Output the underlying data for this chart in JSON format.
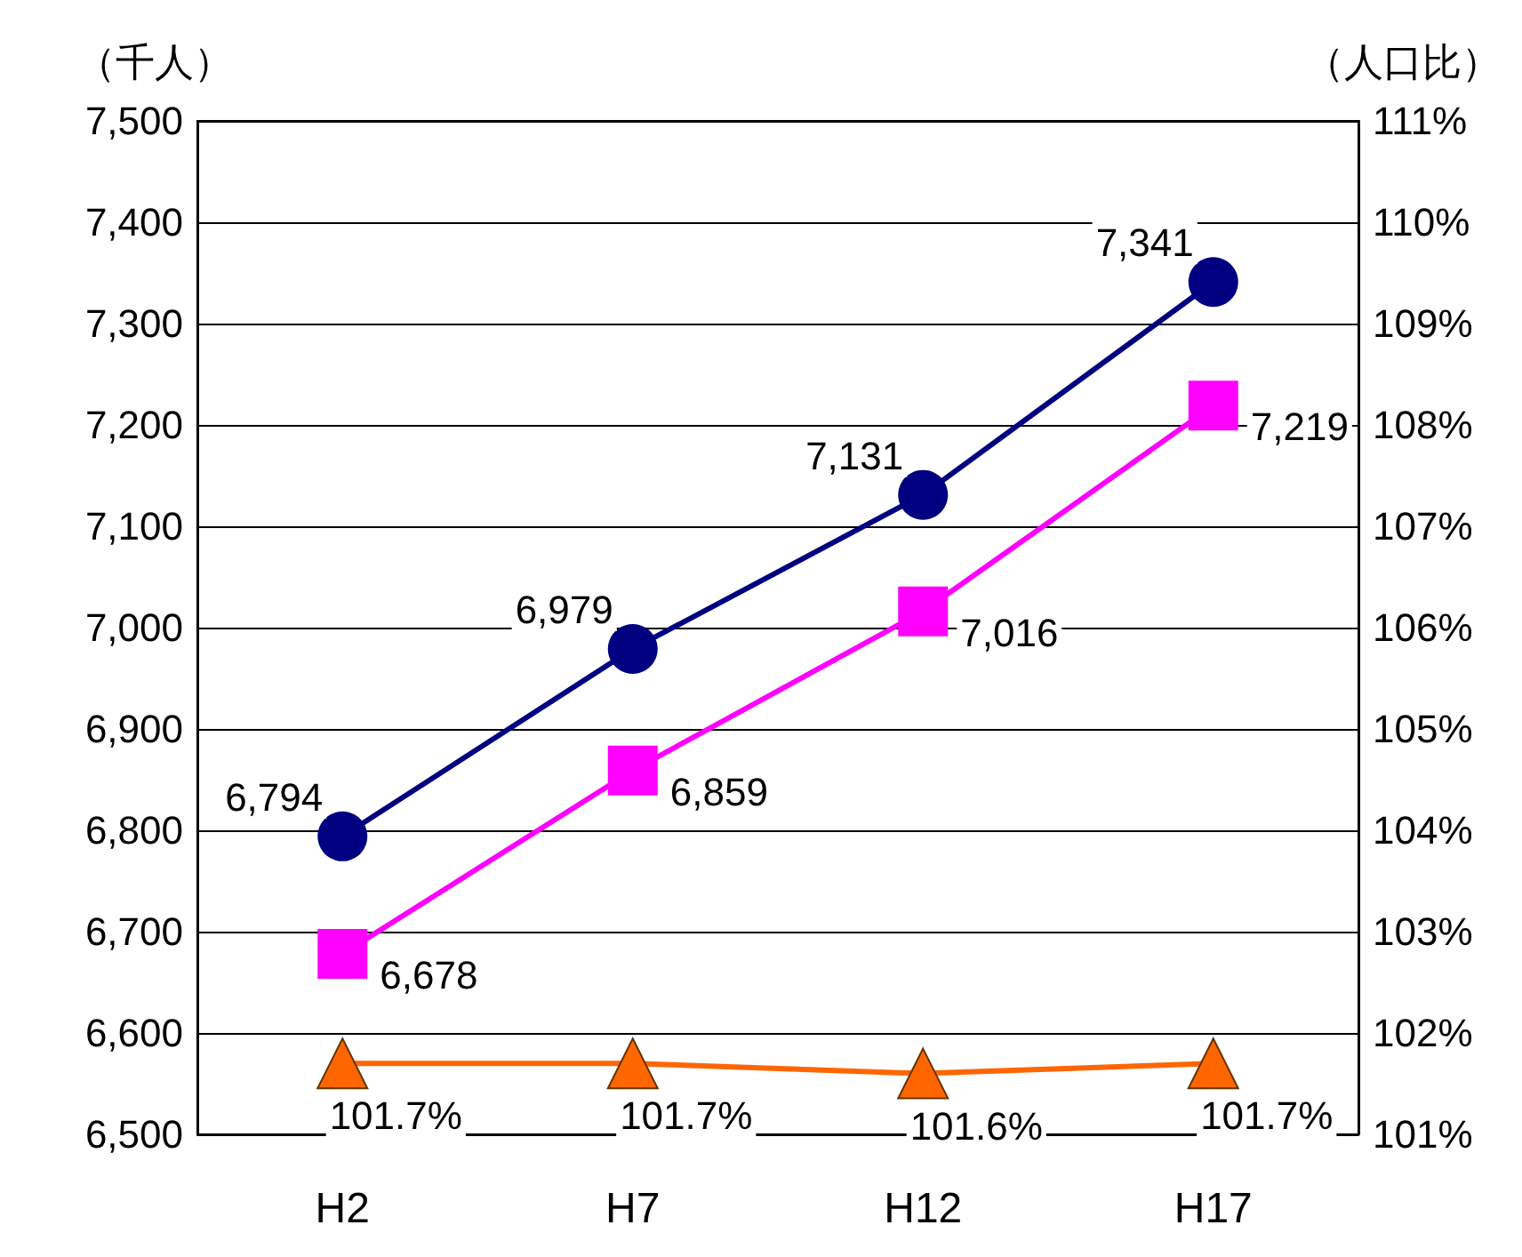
{
  "chart_data": {
    "type": "line",
    "categories": [
      "H2",
      "H7",
      "H12",
      "H17"
    ],
    "ylabel": "（千人）",
    "y2label": "（人口比）",
    "ylim": [
      6500,
      7500
    ],
    "yticks": [
      {
        "value": 6500,
        "label": "6,500"
      },
      {
        "value": 6600,
        "label": "6,600"
      },
      {
        "value": 6700,
        "label": "6,700"
      },
      {
        "value": 6800,
        "label": "6,800"
      },
      {
        "value": 6900,
        "label": "6,900"
      },
      {
        "value": 7000,
        "label": "7,000"
      },
      {
        "value": 7100,
        "label": "7,100"
      },
      {
        "value": 7200,
        "label": "7,200"
      },
      {
        "value": 7300,
        "label": "7,300"
      },
      {
        "value": 7400,
        "label": "7,400"
      },
      {
        "value": 7500,
        "label": "7,500"
      }
    ],
    "y2lim": [
      101,
      111
    ],
    "y2ticks": [
      {
        "value": 101,
        "label": "101%"
      },
      {
        "value": 102,
        "label": "102%"
      },
      {
        "value": 103,
        "label": "103%"
      },
      {
        "value": 104,
        "label": "104%"
      },
      {
        "value": 105,
        "label": "105%"
      },
      {
        "value": 106,
        "label": "106%"
      },
      {
        "value": 107,
        "label": "107%"
      },
      {
        "value": 108,
        "label": "108%"
      },
      {
        "value": 109,
        "label": "109%"
      },
      {
        "value": 110,
        "label": "110%"
      },
      {
        "value": 111,
        "label": "111%"
      }
    ],
    "grid": "y",
    "series": [
      {
        "color": "#000080",
        "marker": "circle",
        "values": [
          6794,
          6979,
          7131,
          7341
        ],
        "value_labels": [
          "6,794",
          "6,979",
          "7,131",
          "7,341"
        ]
      },
      {
        "color": "#ff00ff",
        "marker": "square",
        "values": [
          6678,
          6859,
          7016,
          7219
        ],
        "value_labels": [
          "6,678",
          "6,859",
          "7,016",
          "7,219"
        ]
      },
      {
        "color": "#ff6600",
        "marker": "triangle",
        "axis": "y2",
        "values": [
          101.7,
          101.7,
          101.6,
          101.7
        ],
        "value_labels": [
          "101.7%",
          "101.7%",
          "101.6%",
          "101.7%"
        ]
      }
    ]
  }
}
